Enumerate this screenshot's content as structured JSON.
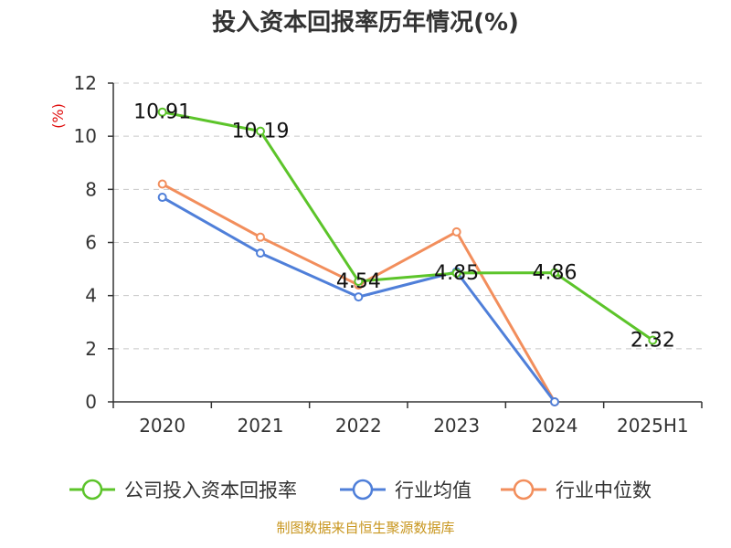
{
  "chart_data": {
    "type": "line",
    "title": "投入资本回报率历年情况(%)",
    "ylabel": "(%)",
    "categories": [
      "2020",
      "2021",
      "2022",
      "2023",
      "2024",
      "2025H1"
    ],
    "ylim": [
      0,
      12
    ],
    "yticks": [
      0,
      2,
      4,
      6,
      8,
      10,
      12
    ],
    "grid": true,
    "legend_position": "bottom",
    "series": [
      {
        "name": "公司投入资本回报率",
        "color": "#5cc42a",
        "values": [
          10.91,
          10.19,
          4.54,
          4.85,
          4.86,
          2.32
        ],
        "labels": [
          "10.91",
          "10.19",
          "4.54",
          "4.85",
          "4.86",
          "2.32"
        ]
      },
      {
        "name": "行业均值",
        "color": "#4f7fd9",
        "values": [
          7.7,
          5.6,
          3.95,
          4.9,
          0.0,
          null
        ]
      },
      {
        "name": "行业中位数",
        "color": "#f28e5c",
        "values": [
          8.2,
          6.2,
          4.4,
          6.4,
          0.0,
          null
        ]
      }
    ]
  },
  "source": "制图数据来自恒生聚源数据库"
}
